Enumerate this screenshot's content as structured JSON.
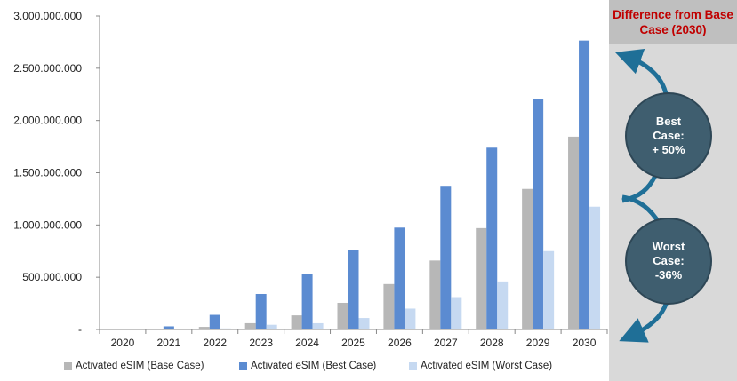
{
  "colors": {
    "base": "#b7b7b7",
    "best": "#5b8bd1",
    "worst": "#c6d9f1",
    "arrow": "#1f6f97",
    "bubble": "#3f5e6f",
    "header_text": "#c00000"
  },
  "side_panel": {
    "title": "Difference from Base\nCase (2030)",
    "best_bubble": "Best\nCase:\n+ 50%",
    "worst_bubble": "Worst\nCase:\n-36%"
  },
  "legend": {
    "base": "Activated eSIM (Base Case)",
    "best": "Activated eSIM (Best Case)",
    "worst": "Activated eSIM (Worst Case)"
  },
  "chart_data": {
    "type": "bar",
    "categories": [
      "2020",
      "2021",
      "2022",
      "2023",
      "2024",
      "2025",
      "2026",
      "2027",
      "2028",
      "2029",
      "2030"
    ],
    "series": [
      {
        "name": "Activated eSIM (Base Case)",
        "values": [
          0,
          8000000,
          25000000,
          60000000,
          135000000,
          255000000,
          435000000,
          660000000,
          970000000,
          1345000000,
          1845000000
        ]
      },
      {
        "name": "Activated eSIM (Best Case)",
        "values": [
          0,
          30000000,
          140000000,
          340000000,
          535000000,
          760000000,
          975000000,
          1375000000,
          1740000000,
          2205000000,
          2765000000
        ]
      },
      {
        "name": "Activated eSIM (Worst Case)",
        "values": [
          0,
          3000000,
          10000000,
          45000000,
          60000000,
          110000000,
          200000000,
          310000000,
          460000000,
          750000000,
          1175000000
        ]
      }
    ],
    "y_ticks": [
      "-",
      "500.000.000",
      "1.000.000.000",
      "1.500.000.000",
      "2.000.000.000",
      "2.500.000.000",
      "3.000.000.000"
    ],
    "ylim": [
      0,
      3000000000
    ],
    "grid": false,
    "legend_position": "bottom"
  }
}
